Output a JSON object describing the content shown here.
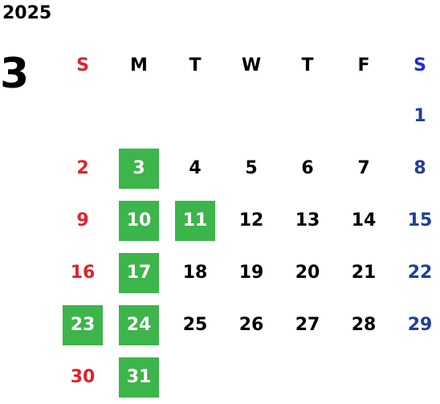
{
  "calendar": {
    "year": "2025",
    "month": "3",
    "weekdays": [
      "S",
      "M",
      "T",
      "W",
      "T",
      "F",
      "S"
    ],
    "days": [
      "",
      "",
      "",
      "",
      "",
      "",
      "1",
      "2",
      "3",
      "4",
      "5",
      "6",
      "7",
      "8",
      "9",
      "10",
      "11",
      "12",
      "13",
      "14",
      "15",
      "16",
      "17",
      "18",
      "19",
      "20",
      "21",
      "22",
      "23",
      "24",
      "25",
      "26",
      "27",
      "28",
      "29",
      "30",
      "31",
      "",
      "",
      "",
      "",
      ""
    ],
    "highlighted_days": [
      "3",
      "10",
      "11",
      "17",
      "23",
      "24",
      "31"
    ]
  },
  "colors": {
    "sunday": "#e0222b",
    "saturday_header": "#1f2fd6",
    "saturday": "#1f3f9a",
    "weekday": "#000000",
    "highlight_bg": "#3cb54a",
    "highlight_text": "#ffffff"
  }
}
